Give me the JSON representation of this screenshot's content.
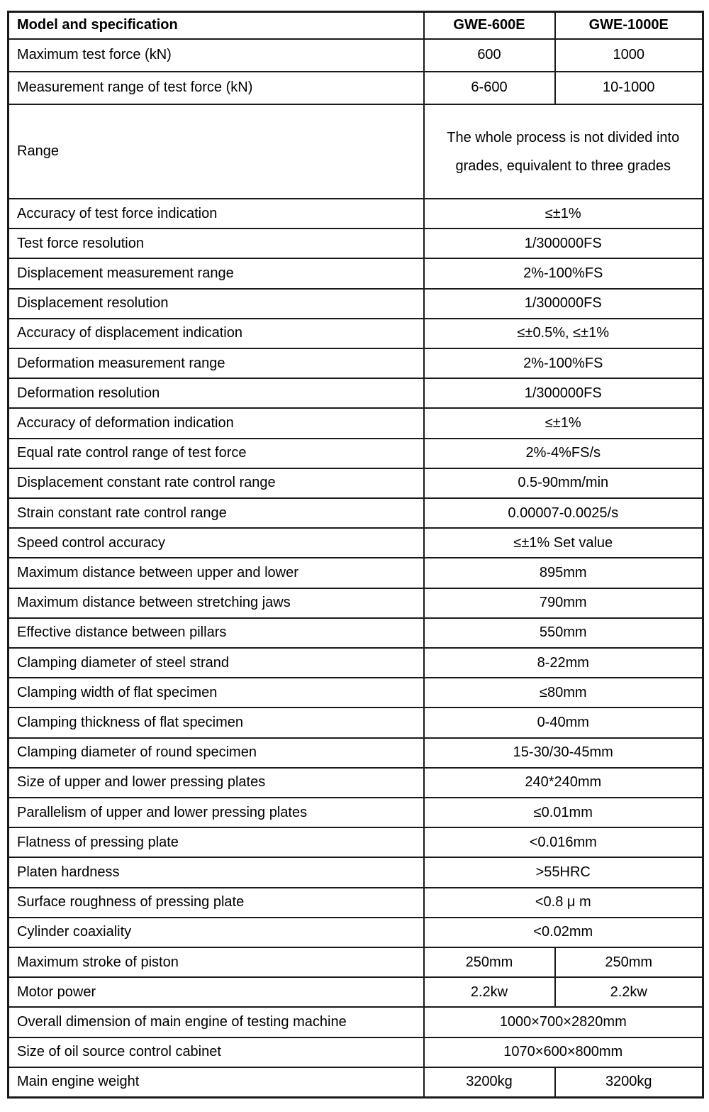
{
  "colors": {
    "background": "#ffffff",
    "border": "#1a1a1a",
    "text": "#000000"
  },
  "table": {
    "header": {
      "label": "Model and specification",
      "model_a": "GWE-600E",
      "model_b": "GWE-1000E"
    },
    "rows": [
      {
        "label": "Maximum test force (kN)",
        "values": [
          "600",
          "1000"
        ]
      },
      {
        "label": "Measurement range of test force (kN)",
        "values": [
          "6-600",
          "10-1000"
        ]
      },
      {
        "label": "Range",
        "value": "The whole process is not divided into grades, equivalent to three grades"
      },
      {
        "label": "Accuracy of test force indication",
        "value": "≤±1%"
      },
      {
        "label": "Test force resolution",
        "value": "1/300000FS"
      },
      {
        "label": "Displacement measurement range",
        "value": "2%-100%FS"
      },
      {
        "label": "Displacement resolution",
        "value": "1/300000FS"
      },
      {
        "label": "Accuracy of displacement indication",
        "value": "≤±0.5%, ≤±1%"
      },
      {
        "label": "Deformation measurement range",
        "value": "2%-100%FS"
      },
      {
        "label": "Deformation resolution",
        "value": "1/300000FS"
      },
      {
        "label": "Accuracy of deformation indication",
        "value": "≤±1%"
      },
      {
        "label": "Equal rate control range of test force",
        "value": "2%-4%FS/s"
      },
      {
        "label": "Displacement constant rate control range",
        "value": "0.5-90mm/min"
      },
      {
        "label": "Strain constant rate control range",
        "value": "0.00007-0.0025/s"
      },
      {
        "label": "Speed control accuracy",
        "value": "≤±1% Set value"
      },
      {
        "label": "Maximum distance between upper and lower",
        "value": "895mm"
      },
      {
        "label": "Maximum distance between stretching jaws",
        "value": "790mm"
      },
      {
        "label": "Effective distance between pillars",
        "value": "550mm"
      },
      {
        "label": "Clamping diameter of steel strand",
        "value": "8-22mm"
      },
      {
        "label": "Clamping width of flat specimen",
        "value": "≤80mm"
      },
      {
        "label": "Clamping thickness of flat specimen",
        "value": "0-40mm"
      },
      {
        "label": "Clamping diameter of round specimen",
        "value": "15-30/30-45mm"
      },
      {
        "label": "Size of upper and lower pressing plates",
        "value": "240*240mm"
      },
      {
        "label": "Parallelism of upper and lower pressing plates",
        "value": "≤0.01mm"
      },
      {
        "label": "Flatness of pressing plate",
        "value": "<0.016mm"
      },
      {
        "label": "Platen hardness",
        "value": ">55HRC"
      },
      {
        "label": "Surface roughness of pressing plate",
        "value": "<0.8 μ m"
      },
      {
        "label": "Cylinder coaxiality",
        "value": "<0.02mm"
      },
      {
        "label": "Maximum stroke of piston",
        "values": [
          "250mm",
          "250mm"
        ]
      },
      {
        "label": "Motor power",
        "values": [
          "2.2kw",
          "2.2kw"
        ]
      },
      {
        "label": "Overall dimension of main engine of testing machine",
        "value": "1000×700×2820mm"
      },
      {
        "label": "Size of oil source control cabinet",
        "value": "1070×600×800mm"
      },
      {
        "label": "Main engine weight",
        "values": [
          "3200kg",
          "3200kg"
        ]
      }
    ]
  }
}
